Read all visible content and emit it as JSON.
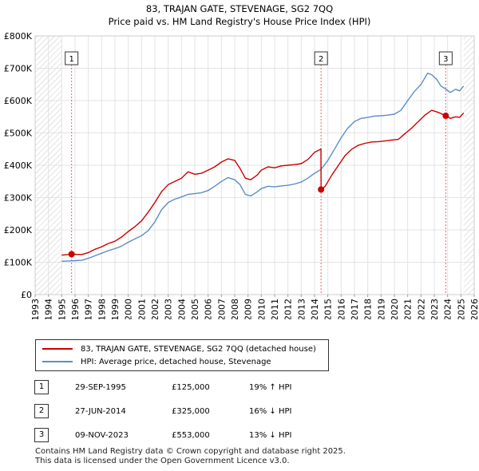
{
  "chart_data": {
    "type": "line",
    "title": "83, TRAJAN GATE, STEVENAGE, SG2 7QQ",
    "subtitle": "Price paid vs. HM Land Registry's House Price Index (HPI)",
    "x_ticks": [
      "1993",
      "1994",
      "1995",
      "1996",
      "1997",
      "1998",
      "1999",
      "2000",
      "2001",
      "2002",
      "2003",
      "2004",
      "2005",
      "2006",
      "2007",
      "2008",
      "2009",
      "2010",
      "2011",
      "2012",
      "2013",
      "2014",
      "2015",
      "2016",
      "2017",
      "2018",
      "2019",
      "2020",
      "2021",
      "2022",
      "2023",
      "2024",
      "2025",
      "2026"
    ],
    "y_ticks": [
      {
        "value": 0,
        "label": "£0"
      },
      {
        "value": 100000,
        "label": "£100K"
      },
      {
        "value": 200000,
        "label": "£200K"
      },
      {
        "value": 300000,
        "label": "£300K"
      },
      {
        "value": 400000,
        "label": "£400K"
      },
      {
        "value": 500000,
        "label": "£500K"
      },
      {
        "value": 600000,
        "label": "£600K"
      },
      {
        "value": 700000,
        "label": "£700K"
      },
      {
        "value": 800000,
        "label": "£800K"
      }
    ],
    "xlim": [
      1993,
      2026
    ],
    "ylim": [
      0,
      800000
    ],
    "data_start": 1995,
    "data_end": 2025.2,
    "series": [
      {
        "name": "83, TRAJAN GATE, STEVENAGE, SG2 7QQ (detached house)",
        "color": "#cc0000",
        "points": [
          [
            1995.0,
            122000
          ],
          [
            1995.74,
            125000
          ],
          [
            1996.5,
            124000
          ],
          [
            1997.0,
            130000
          ],
          [
            1997.5,
            140000
          ],
          [
            1998.0,
            148000
          ],
          [
            1998.5,
            158000
          ],
          [
            1999.0,
            165000
          ],
          [
            1999.5,
            178000
          ],
          [
            2000.0,
            195000
          ],
          [
            2000.5,
            210000
          ],
          [
            2001.0,
            228000
          ],
          [
            2001.5,
            255000
          ],
          [
            2002.0,
            285000
          ],
          [
            2002.5,
            318000
          ],
          [
            2003.0,
            340000
          ],
          [
            2003.5,
            350000
          ],
          [
            2004.0,
            360000
          ],
          [
            2004.5,
            380000
          ],
          [
            2005.0,
            372000
          ],
          [
            2005.5,
            375000
          ],
          [
            2006.0,
            385000
          ],
          [
            2006.5,
            395000
          ],
          [
            2007.0,
            410000
          ],
          [
            2007.5,
            420000
          ],
          [
            2008.0,
            415000
          ],
          [
            2008.4,
            390000
          ],
          [
            2008.8,
            360000
          ],
          [
            2009.2,
            355000
          ],
          [
            2009.7,
            370000
          ],
          [
            2010.0,
            385000
          ],
          [
            2010.5,
            395000
          ],
          [
            2011.0,
            392000
          ],
          [
            2011.5,
            398000
          ],
          [
            2012.0,
            400000
          ],
          [
            2012.5,
            402000
          ],
          [
            2013.0,
            405000
          ],
          [
            2013.5,
            418000
          ],
          [
            2014.0,
            440000
          ],
          [
            2014.48,
            450000
          ],
          [
            2014.49,
            325000
          ],
          [
            2014.8,
            335000
          ],
          [
            2015.3,
            370000
          ],
          [
            2015.8,
            400000
          ],
          [
            2016.3,
            430000
          ],
          [
            2016.8,
            450000
          ],
          [
            2017.3,
            462000
          ],
          [
            2017.8,
            468000
          ],
          [
            2018.3,
            472000
          ],
          [
            2018.8,
            473000
          ],
          [
            2019.3,
            475000
          ],
          [
            2019.8,
            478000
          ],
          [
            2020.3,
            480000
          ],
          [
            2020.8,
            498000
          ],
          [
            2021.3,
            515000
          ],
          [
            2021.8,
            535000
          ],
          [
            2022.3,
            555000
          ],
          [
            2022.8,
            570000
          ],
          [
            2023.2,
            565000
          ],
          [
            2023.5,
            560000
          ],
          [
            2023.86,
            553000
          ],
          [
            2024.2,
            545000
          ],
          [
            2024.6,
            550000
          ],
          [
            2024.9,
            548000
          ],
          [
            2025.2,
            562000
          ]
        ]
      },
      {
        "name": "HPI: Average price, detached house, Stevenage",
        "color": "#5b8ec7",
        "points": [
          [
            1995.0,
            103000
          ],
          [
            1995.5,
            104000
          ],
          [
            1996.0,
            105000
          ],
          [
            1996.5,
            106000
          ],
          [
            1997.0,
            112000
          ],
          [
            1997.5,
            120000
          ],
          [
            1998.0,
            128000
          ],
          [
            1998.5,
            136000
          ],
          [
            1999.0,
            142000
          ],
          [
            1999.5,
            150000
          ],
          [
            2000.0,
            162000
          ],
          [
            2000.5,
            172000
          ],
          [
            2001.0,
            182000
          ],
          [
            2001.5,
            198000
          ],
          [
            2002.0,
            225000
          ],
          [
            2002.5,
            262000
          ],
          [
            2003.0,
            285000
          ],
          [
            2003.5,
            295000
          ],
          [
            2004.0,
            302000
          ],
          [
            2004.5,
            310000
          ],
          [
            2005.0,
            312000
          ],
          [
            2005.5,
            315000
          ],
          [
            2006.0,
            322000
          ],
          [
            2006.5,
            335000
          ],
          [
            2007.0,
            350000
          ],
          [
            2007.5,
            362000
          ],
          [
            2008.0,
            355000
          ],
          [
            2008.4,
            340000
          ],
          [
            2008.8,
            310000
          ],
          [
            2009.2,
            305000
          ],
          [
            2009.7,
            318000
          ],
          [
            2010.0,
            328000
          ],
          [
            2010.5,
            335000
          ],
          [
            2011.0,
            333000
          ],
          [
            2011.5,
            336000
          ],
          [
            2012.0,
            338000
          ],
          [
            2012.5,
            342000
          ],
          [
            2013.0,
            348000
          ],
          [
            2013.5,
            360000
          ],
          [
            2014.0,
            375000
          ],
          [
            2014.48,
            387000
          ],
          [
            2015.0,
            415000
          ],
          [
            2015.5,
            450000
          ],
          [
            2016.0,
            485000
          ],
          [
            2016.5,
            515000
          ],
          [
            2017.0,
            535000
          ],
          [
            2017.5,
            545000
          ],
          [
            2018.0,
            548000
          ],
          [
            2018.5,
            552000
          ],
          [
            2019.0,
            553000
          ],
          [
            2019.5,
            555000
          ],
          [
            2020.0,
            558000
          ],
          [
            2020.5,
            570000
          ],
          [
            2021.0,
            600000
          ],
          [
            2021.5,
            628000
          ],
          [
            2022.0,
            650000
          ],
          [
            2022.5,
            685000
          ],
          [
            2022.8,
            680000
          ],
          [
            2023.2,
            665000
          ],
          [
            2023.5,
            645000
          ],
          [
            2023.86,
            636000
          ],
          [
            2024.2,
            625000
          ],
          [
            2024.6,
            635000
          ],
          [
            2024.9,
            630000
          ],
          [
            2025.2,
            645000
          ]
        ]
      }
    ],
    "markers": [
      {
        "label": "1",
        "x": 1995.74,
        "y": 125000
      },
      {
        "label": "2",
        "x": 2014.49,
        "y": 325000
      },
      {
        "label": "3",
        "x": 2023.86,
        "y": 553000
      }
    ],
    "hatch_regions": [
      [
        1993,
        1995
      ],
      [
        2025.2,
        2026
      ]
    ]
  },
  "legend": [
    {
      "label": "83, TRAJAN GATE, STEVENAGE, SG2 7QQ (detached house)",
      "color": "#cc0000"
    },
    {
      "label": "HPI: Average price, detached house, Stevenage",
      "color": "#5b8ec7"
    }
  ],
  "transactions": [
    {
      "num": "1",
      "date": "29-SEP-1995",
      "price": "£125,000",
      "hpi": "19% ↑ HPI"
    },
    {
      "num": "2",
      "date": "27-JUN-2014",
      "price": "£325,000",
      "hpi": "16% ↓ HPI"
    },
    {
      "num": "3",
      "date": "09-NOV-2023",
      "price": "£553,000",
      "hpi": "13% ↓ HPI"
    }
  ],
  "footer": {
    "line1": "Contains HM Land Registry data © Crown copyright and database right 2025.",
    "line2": "This data is licensed under the Open Government Licence v3.0."
  }
}
